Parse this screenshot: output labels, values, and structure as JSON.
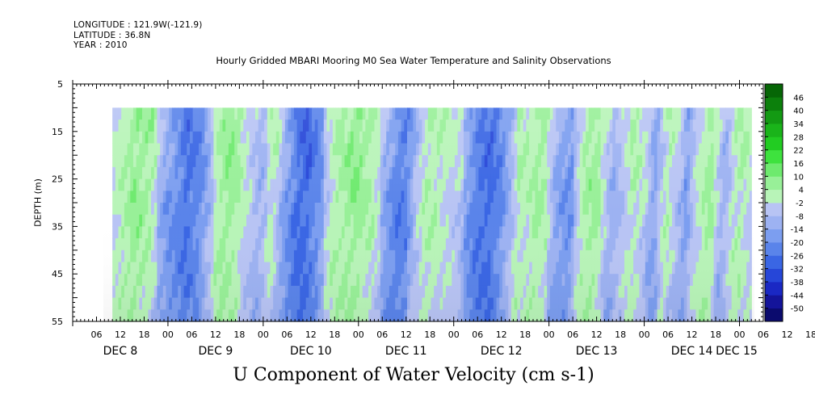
{
  "header": {
    "longitude": "LONGITUDE : 121.9W(-121.9)",
    "latitude": "LATITUDE : 36.8N",
    "year": "YEAR : 2010"
  },
  "chart_data": {
    "type": "heatmap",
    "title": "Hourly Gridded MBARI Mooring M0 Sea Water Temperature and Salinity Observations",
    "xlabel": "U Component of Water Velocity (cm s-1)",
    "ylabel": "DEPTH (m)",
    "y_axis": {
      "range": [
        5,
        55
      ],
      "inverted": true,
      "ticks": [
        5,
        15,
        25,
        35,
        45,
        55
      ]
    },
    "x_axis": {
      "range_hours": [
        0,
        174
      ],
      "start": "2010-12-08 00:00",
      "hour_ticks": [
        "06",
        "12",
        "18",
        "00",
        "06",
        "12",
        "18",
        "00",
        "06",
        "12",
        "18",
        "00",
        "06",
        "12",
        "18",
        "00",
        "06",
        "12",
        "18",
        "00",
        "06",
        "12",
        "18",
        "00",
        "06",
        "12",
        "18",
        "00",
        "06",
        "12",
        "18",
        "00"
      ],
      "day_labels": [
        "DEC  8",
        "DEC  9",
        "DEC 10",
        "DEC 11",
        "DEC 12",
        "DEC 13",
        "DEC 14",
        "DEC 15"
      ]
    },
    "data_extent": {
      "hours": [
        10,
        171
      ],
      "depth": [
        10,
        55
      ]
    },
    "colorbar": {
      "levels": [
        -50,
        -44,
        -38,
        -32,
        -26,
        -20,
        -14,
        -8,
        -2,
        4,
        10,
        16,
        22,
        28,
        34,
        40,
        46
      ],
      "colors_low": [
        "#0b0b6e",
        "#14149a",
        "#1a28c4",
        "#2646d8",
        "#3a66e4",
        "#5a84ea",
        "#7c9ef0",
        "#9db2f2",
        "#b8c4f4"
      ],
      "colors_high": [
        "#b8f4b8",
        "#98f098",
        "#6eea6e",
        "#3ee23e",
        "#22cc22",
        "#1ab41a",
        "#139a13",
        "#0c800c",
        "#066606"
      ],
      "tick_labels": [
        "46",
        "40",
        "34",
        "28",
        "22",
        "16",
        "10",
        "4",
        "-2",
        "-8",
        "-14",
        "-20",
        "-26",
        "-32",
        "-38",
        "-44",
        "-50"
      ]
    },
    "u_profile_hourly": [
      [
        10,
        4
      ],
      [
        13,
        12
      ],
      [
        16,
        16
      ],
      [
        19,
        12
      ],
      [
        21,
        4
      ],
      [
        23,
        -8
      ],
      [
        26,
        -16
      ],
      [
        29,
        -22
      ],
      [
        32,
        -16
      ],
      [
        34,
        -4
      ],
      [
        36,
        8
      ],
      [
        39,
        16
      ],
      [
        42,
        10
      ],
      [
        44,
        4
      ],
      [
        47,
        -4
      ],
      [
        49,
        4
      ],
      [
        51,
        8
      ],
      [
        53,
        -8
      ],
      [
        56,
        -22
      ],
      [
        59,
        -24
      ],
      [
        62,
        -14
      ],
      [
        64,
        0
      ],
      [
        66,
        10
      ],
      [
        69,
        14
      ],
      [
        72,
        16
      ],
      [
        75,
        10
      ],
      [
        77,
        4
      ],
      [
        79,
        -8
      ],
      [
        82,
        -20
      ],
      [
        85,
        -14
      ],
      [
        87,
        2
      ],
      [
        89,
        10
      ],
      [
        92,
        10
      ],
      [
        94,
        6
      ],
      [
        97,
        2
      ],
      [
        99,
        -8
      ],
      [
        102,
        -20
      ],
      [
        105,
        -24
      ],
      [
        108,
        -16
      ],
      [
        110,
        -4
      ],
      [
        112,
        10
      ],
      [
        115,
        8
      ],
      [
        117,
        14
      ],
      [
        120,
        6
      ],
      [
        122,
        -8
      ],
      [
        125,
        -14
      ],
      [
        127,
        -2
      ],
      [
        129,
        12
      ],
      [
        132,
        14
      ],
      [
        134,
        6
      ],
      [
        136,
        -6
      ],
      [
        139,
        4
      ],
      [
        141,
        10
      ],
      [
        144,
        4
      ],
      [
        146,
        -10
      ],
      [
        148,
        -2
      ],
      [
        150,
        10
      ],
      [
        153,
        -4
      ],
      [
        155,
        -12
      ],
      [
        157,
        4
      ],
      [
        160,
        14
      ],
      [
        162,
        8
      ],
      [
        164,
        -6
      ],
      [
        166,
        6
      ],
      [
        168,
        12
      ],
      [
        171,
        4
      ]
    ]
  }
}
